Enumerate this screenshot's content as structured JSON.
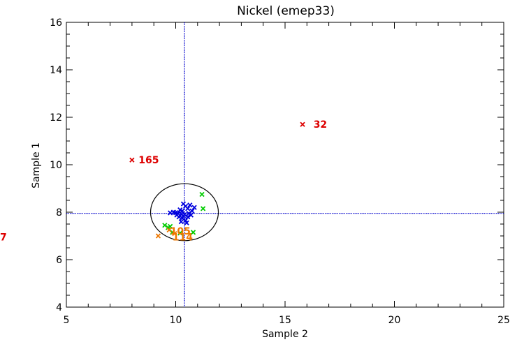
{
  "chart_data": {
    "type": "scatter",
    "title": "Nickel (emep33)",
    "xlabel": "Sample 2",
    "ylabel": "Sample 1",
    "xlim": [
      5,
      25
    ],
    "ylim": [
      4,
      16
    ],
    "x_ticks": [
      5,
      10,
      15,
      20,
      25
    ],
    "y_ticks": [
      4,
      6,
      8,
      10,
      12,
      14,
      16
    ],
    "reference_lines": {
      "x": 10.4,
      "y": 7.95,
      "color": "#0000cc",
      "style": "dotted"
    },
    "ellipse": {
      "center": [
        10.4,
        8.0
      ],
      "semi_axis_x": 1.55,
      "semi_axis_y": 1.2,
      "color": "#000000"
    },
    "series": [
      {
        "color": "#0000dd",
        "points": [
          [
            10.35,
            8.35
          ],
          [
            10.45,
            8.25
          ],
          [
            10.2,
            8.1
          ],
          [
            10.55,
            8.15
          ],
          [
            10.0,
            7.98
          ],
          [
            10.1,
            7.95
          ],
          [
            10.25,
            7.92
          ],
          [
            10.4,
            7.9
          ],
          [
            10.6,
            7.95
          ],
          [
            10.75,
            8.05
          ],
          [
            10.85,
            8.2
          ],
          [
            10.65,
            8.3
          ],
          [
            9.75,
            7.97
          ],
          [
            9.9,
            8.0
          ],
          [
            10.15,
            7.8
          ],
          [
            10.3,
            7.75
          ],
          [
            10.45,
            7.65
          ],
          [
            10.5,
            7.55
          ],
          [
            10.25,
            7.6
          ],
          [
            10.35,
            7.85
          ],
          [
            10.55,
            7.8
          ],
          [
            10.7,
            7.88
          ],
          [
            10.05,
            7.88
          ],
          [
            10.3,
            8.05
          ]
        ]
      },
      {
        "color": "#00cc00",
        "points": [
          [
            11.2,
            8.75
          ],
          [
            11.25,
            8.15
          ],
          [
            10.8,
            7.15
          ],
          [
            9.5,
            7.45
          ],
          [
            9.75,
            7.4
          ],
          [
            9.65,
            7.35
          ],
          [
            9.85,
            7.15
          ],
          [
            10.2,
            7.12
          ]
        ]
      },
      {
        "color": "#ee7700",
        "points": [
          [
            9.2,
            7.0
          ],
          [
            9.7,
            7.25
          ],
          [
            9.95,
            7.1
          ]
        ],
        "labels": [
          {
            "text": "105",
            "x": 9.75,
            "y": 7.2
          },
          {
            "text": "114",
            "x": 9.85,
            "y": 6.95
          }
        ]
      },
      {
        "color": "#dd0000",
        "points": [
          [
            8.0,
            10.2
          ],
          [
            15.8,
            11.7
          ]
        ],
        "labels": [
          {
            "text": "165",
            "x": 8.3,
            "y": 10.2
          },
          {
            "text": "32",
            "x": 16.3,
            "y": 11.7
          }
        ]
      }
    ],
    "offscale_labels": [
      {
        "text": "7",
        "color": "#dd0000",
        "y": 6.95
      }
    ]
  }
}
